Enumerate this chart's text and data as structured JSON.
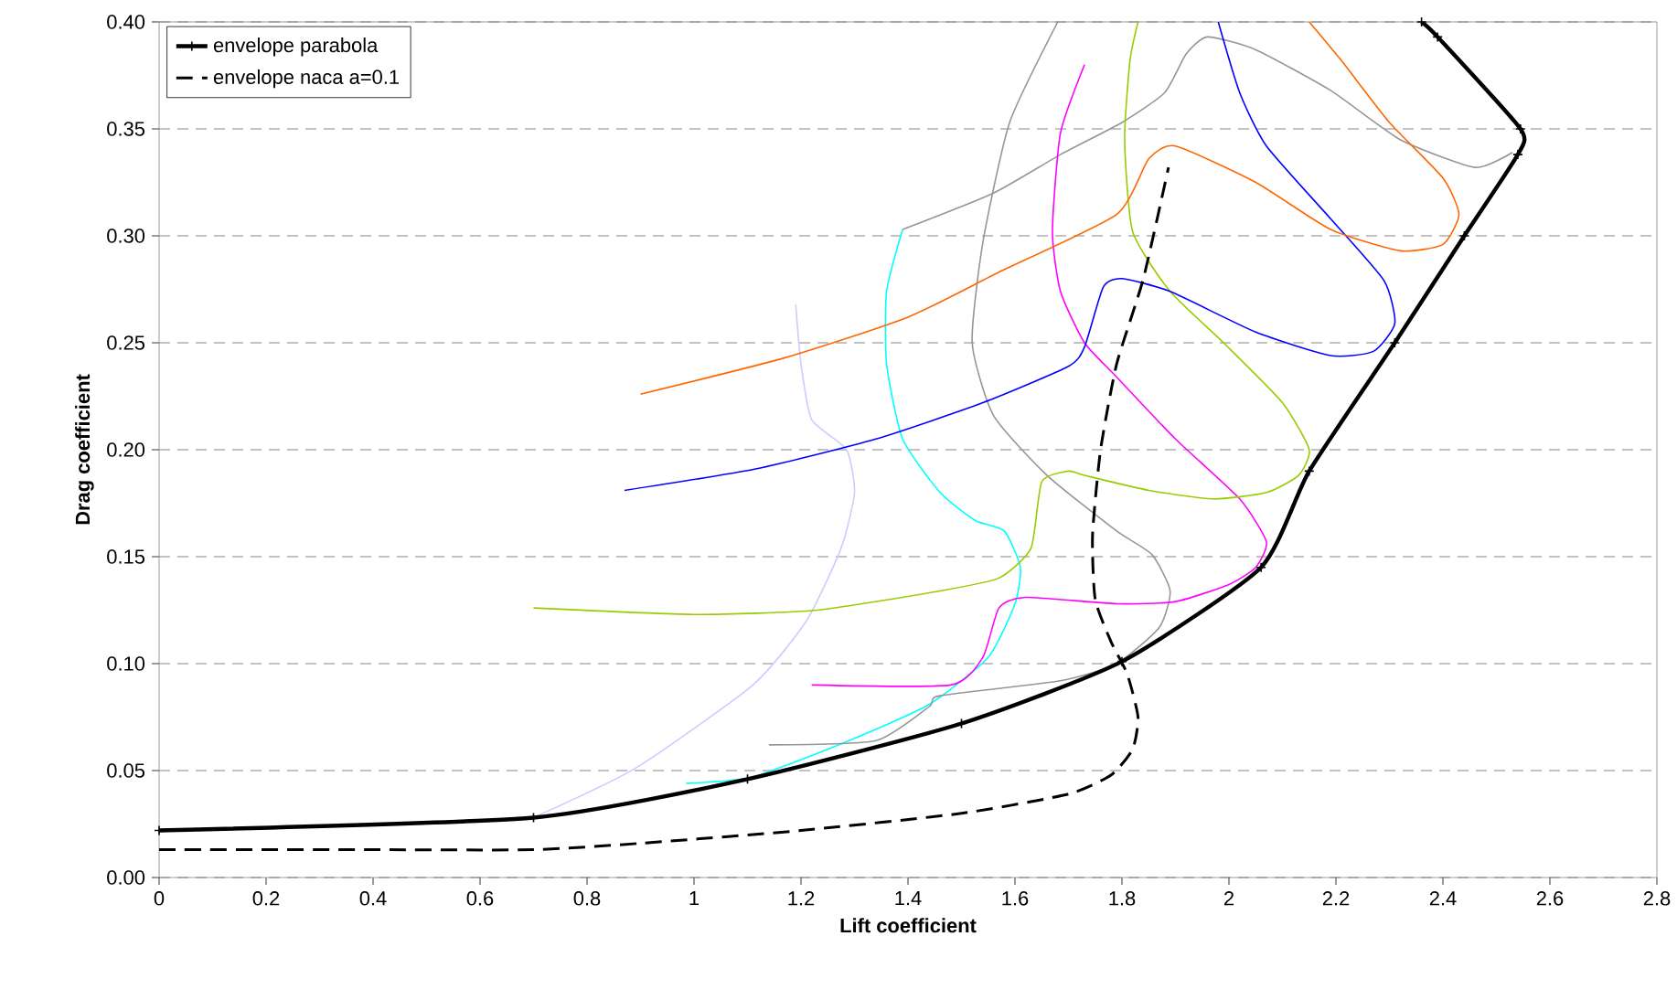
{
  "chart_data": {
    "type": "line",
    "xlabel": "Lift coefficient",
    "ylabel": "Drag coefficient",
    "xlim": [
      0,
      2.8
    ],
    "ylim": [
      0,
      0.4
    ],
    "xticks": [
      0,
      0.2,
      0.4,
      0.6,
      0.8,
      1,
      1.2,
      1.4,
      1.6,
      1.8,
      2,
      2.2,
      2.4,
      2.6,
      2.8
    ],
    "yticks": [
      {
        "value": 0,
        "label": "0.00"
      },
      {
        "value": 0.05,
        "label": "0.05"
      },
      {
        "value": 0.1,
        "label": "0.10"
      },
      {
        "value": 0.15,
        "label": "0.15"
      },
      {
        "value": 0.2,
        "label": "0.20"
      },
      {
        "value": 0.25,
        "label": "0.25"
      },
      {
        "value": 0.3,
        "label": "0.30"
      },
      {
        "value": 0.35,
        "label": "0.35"
      },
      {
        "value": 0.4,
        "label": "0.40"
      }
    ],
    "grid": "y",
    "legend": "top left",
    "series": [
      {
        "color": "#ccccff",
        "x": [
          0.7,
          0.89,
          1.11,
          1.21,
          1.275,
          1.3,
          1.285,
          1.22,
          1.2,
          1.19
        ],
        "values": [
          0.028,
          0.051,
          0.09,
          0.12,
          0.154,
          0.18,
          0.2,
          0.214,
          0.24,
          0.268
        ]
      },
      {
        "color": "#00ffff",
        "x": [
          0.985,
          1.11,
          1.29,
          1.44,
          1.55,
          1.6,
          1.61,
          1.58,
          1.525,
          1.46,
          1.39,
          1.36,
          1.36,
          1.39
        ],
        "values": [
          0.044,
          0.047,
          0.064,
          0.081,
          0.103,
          0.128,
          0.145,
          0.162,
          0.167,
          0.18,
          0.205,
          0.24,
          0.274,
          0.303
        ]
      },
      {
        "color": "#969696",
        "x": [
          1.39,
          1.56,
          1.685,
          1.8,
          1.88,
          1.92,
          1.96,
          2.05,
          2.19,
          2.32,
          2.46,
          2.53
        ],
        "values": [
          0.303,
          0.32,
          0.338,
          0.353,
          0.367,
          0.385,
          0.393,
          0.387,
          0.368,
          0.345,
          0.332,
          0.339
        ]
      },
      {
        "color": "#969696",
        "x": [
          1.14,
          1.34,
          1.44,
          1.46,
          1.685,
          1.79,
          1.87,
          1.89,
          1.856,
          1.79,
          1.66,
          1.56,
          1.52,
          1.54,
          1.59,
          1.68
        ],
        "values": [
          0.062,
          0.064,
          0.08,
          0.085,
          0.092,
          0.1,
          0.117,
          0.134,
          0.151,
          0.162,
          0.188,
          0.216,
          0.25,
          0.297,
          0.353,
          0.4
        ]
      },
      {
        "color": "#ff00ff",
        "x": [
          1.22,
          1.48,
          1.54,
          1.57,
          1.62,
          1.79,
          1.9,
          2.0,
          2.05,
          2.07,
          2.02,
          1.9,
          1.79,
          1.73,
          1.685,
          1.67,
          1.685,
          1.73
        ],
        "values": [
          0.09,
          0.09,
          0.103,
          0.126,
          0.131,
          0.128,
          0.129,
          0.137,
          0.145,
          0.157,
          0.177,
          0.205,
          0.234,
          0.25,
          0.274,
          0.302,
          0.348,
          0.38
        ]
      },
      {
        "color": "#99cc00",
        "x": [
          0.7,
          1.0,
          1.23,
          1.46,
          1.57,
          1.63,
          1.65,
          1.7,
          1.73,
          1.85,
          1.97,
          2.07,
          2.13,
          2.15,
          2.1,
          1.99,
          1.89,
          1.82,
          1.805,
          1.815,
          1.83
        ],
        "values": [
          0.126,
          0.123,
          0.125,
          0.134,
          0.14,
          0.154,
          0.185,
          0.19,
          0.188,
          0.181,
          0.177,
          0.18,
          0.188,
          0.2,
          0.222,
          0.25,
          0.274,
          0.302,
          0.345,
          0.382,
          0.4
        ]
      },
      {
        "color": "#0000ff",
        "x": [
          0.87,
          1.115,
          1.34,
          1.54,
          1.7,
          1.73,
          1.765,
          1.8,
          1.89,
          2.05,
          2.19,
          2.27,
          2.31,
          2.29,
          2.19,
          2.07,
          2.02,
          1.98
        ],
        "values": [
          0.181,
          0.191,
          0.205,
          0.222,
          0.239,
          0.248,
          0.276,
          0.28,
          0.274,
          0.255,
          0.244,
          0.246,
          0.259,
          0.279,
          0.308,
          0.342,
          0.367,
          0.4
        ]
      },
      {
        "color": "#ff6600",
        "x": [
          0.9,
          1.17,
          1.4,
          1.57,
          1.79,
          1.85,
          1.9,
          2.05,
          2.19,
          2.32,
          2.4,
          2.43,
          2.4,
          2.3,
          2.21,
          2.15
        ],
        "values": [
          0.226,
          0.243,
          0.262,
          0.283,
          0.31,
          0.336,
          0.342,
          0.325,
          0.303,
          0.293,
          0.296,
          0.31,
          0.327,
          0.353,
          0.382,
          0.4
        ]
      },
      {
        "name": "envelope parabola",
        "color": "#000000",
        "marker": "cross",
        "line_style": "solid",
        "x": [
          0,
          0.7,
          1.1,
          1.5,
          1.8,
          2.06,
          2.15,
          2.31,
          2.44,
          2.54,
          2.545,
          2.39,
          2.36
        ],
        "values": [
          0.022,
          0.028,
          0.046,
          0.072,
          0.101,
          0.145,
          0.19,
          0.25,
          0.3,
          0.338,
          0.35,
          0.393,
          0.4
        ]
      },
      {
        "name": "envelope naca a=0.1",
        "color": "#000000",
        "line_style": "dashed",
        "x": [
          0,
          0.4,
          0.7,
          0.9,
          1.2,
          1.5,
          1.7,
          1.78,
          1.82,
          1.83,
          1.81,
          1.78,
          1.75,
          1.745,
          1.76,
          1.79,
          1.84,
          1.887
        ],
        "values": [
          0.013,
          0.013,
          0.013,
          0.016,
          0.022,
          0.03,
          0.039,
          0.048,
          0.06,
          0.075,
          0.095,
          0.11,
          0.13,
          0.16,
          0.2,
          0.24,
          0.28,
          0.332
        ]
      }
    ]
  }
}
